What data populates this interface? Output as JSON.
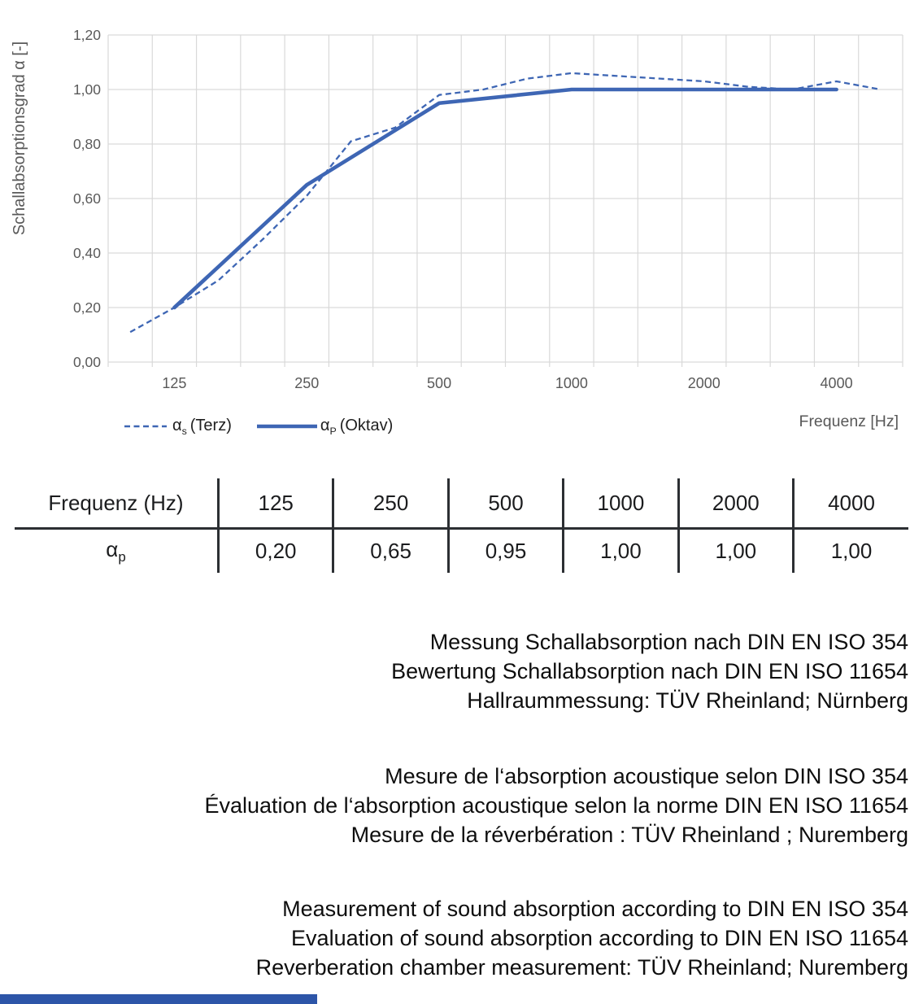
{
  "chart": {
    "y_axis_title": "Schallabsorptionsgrad α [-]",
    "x_axis_title": "Frequenz [Hz]",
    "legend": [
      {
        "symbol": "α",
        "sub": "s",
        "label": "(Terz)"
      },
      {
        "symbol": "α",
        "sub": "P",
        "label": "(Oktav)"
      }
    ],
    "colors": {
      "line": "#3E66B4",
      "grid": "#D9D9D9",
      "tick_text": "#595959",
      "footer_bar": "#2D55A8"
    },
    "chart_data": {
      "type": "line",
      "x_categories": [
        "100",
        "125",
        "160",
        "200",
        "250",
        "315",
        "400",
        "500",
        "630",
        "800",
        "1000",
        "1250",
        "1600",
        "2000",
        "2500",
        "3150",
        "4000",
        "5000"
      ],
      "xtick_labels": [
        "125",
        "250",
        "500",
        "1000",
        "2000",
        "4000"
      ],
      "xtick_indices": [
        1,
        4,
        7,
        10,
        13,
        16
      ],
      "ytick_labels": [
        "0,00",
        "0,20",
        "0,40",
        "0,60",
        "0,80",
        "1,00",
        "1,20"
      ],
      "ylim": [
        0,
        1.2
      ],
      "grid": true,
      "legend_position": "bottom-left",
      "series": [
        {
          "name": "αs (Terz)",
          "style": "dashed",
          "x_indices": [
            0,
            1,
            2,
            3,
            4,
            5,
            6,
            7,
            8,
            9,
            10,
            11,
            12,
            13,
            14,
            15,
            16,
            17
          ],
          "values": [
            0.11,
            0.2,
            0.3,
            0.45,
            0.61,
            0.81,
            0.86,
            0.98,
            1.0,
            1.04,
            1.06,
            1.05,
            1.04,
            1.03,
            1.01,
            1.0,
            1.03,
            1.0
          ]
        },
        {
          "name": "αP (Oktav)",
          "style": "solid",
          "x_indices": [
            1,
            4,
            7,
            10,
            13,
            16
          ],
          "values": [
            0.2,
            0.65,
            0.95,
            1.0,
            1.0,
            1.0
          ]
        }
      ]
    }
  },
  "table": {
    "row1_header": "Frequenz (Hz)",
    "headers": [
      "125",
      "250",
      "500",
      "1000",
      "2000",
      "4000"
    ],
    "row2_symbol": "α",
    "row2_sub": "p",
    "values": [
      "0,20",
      "0,65",
      "0,95",
      "1,00",
      "1,00",
      "1,00"
    ]
  },
  "notes": {
    "de": [
      "Messung Schallabsorption nach DIN EN ISO 354",
      "Bewertung Schallabsorption nach DIN EN ISO 11654",
      "Hallraummessung: TÜV Rheinland; Nürnberg"
    ],
    "fr": [
      "Mesure de l‘absorption acoustique selon DIN ISO 354",
      "Évaluation de l‘absorption acoustique selon la norme DIN EN ISO 11654",
      "Mesure de la réverbération : TÜV Rheinland ; Nuremberg"
    ],
    "en": [
      "Measurement of sound absorption according to DIN EN ISO 354",
      "Evaluation of sound absorption according to DIN EN ISO 11654",
      "Reverberation chamber measurement: TÜV Rheinland; Nuremberg"
    ]
  }
}
